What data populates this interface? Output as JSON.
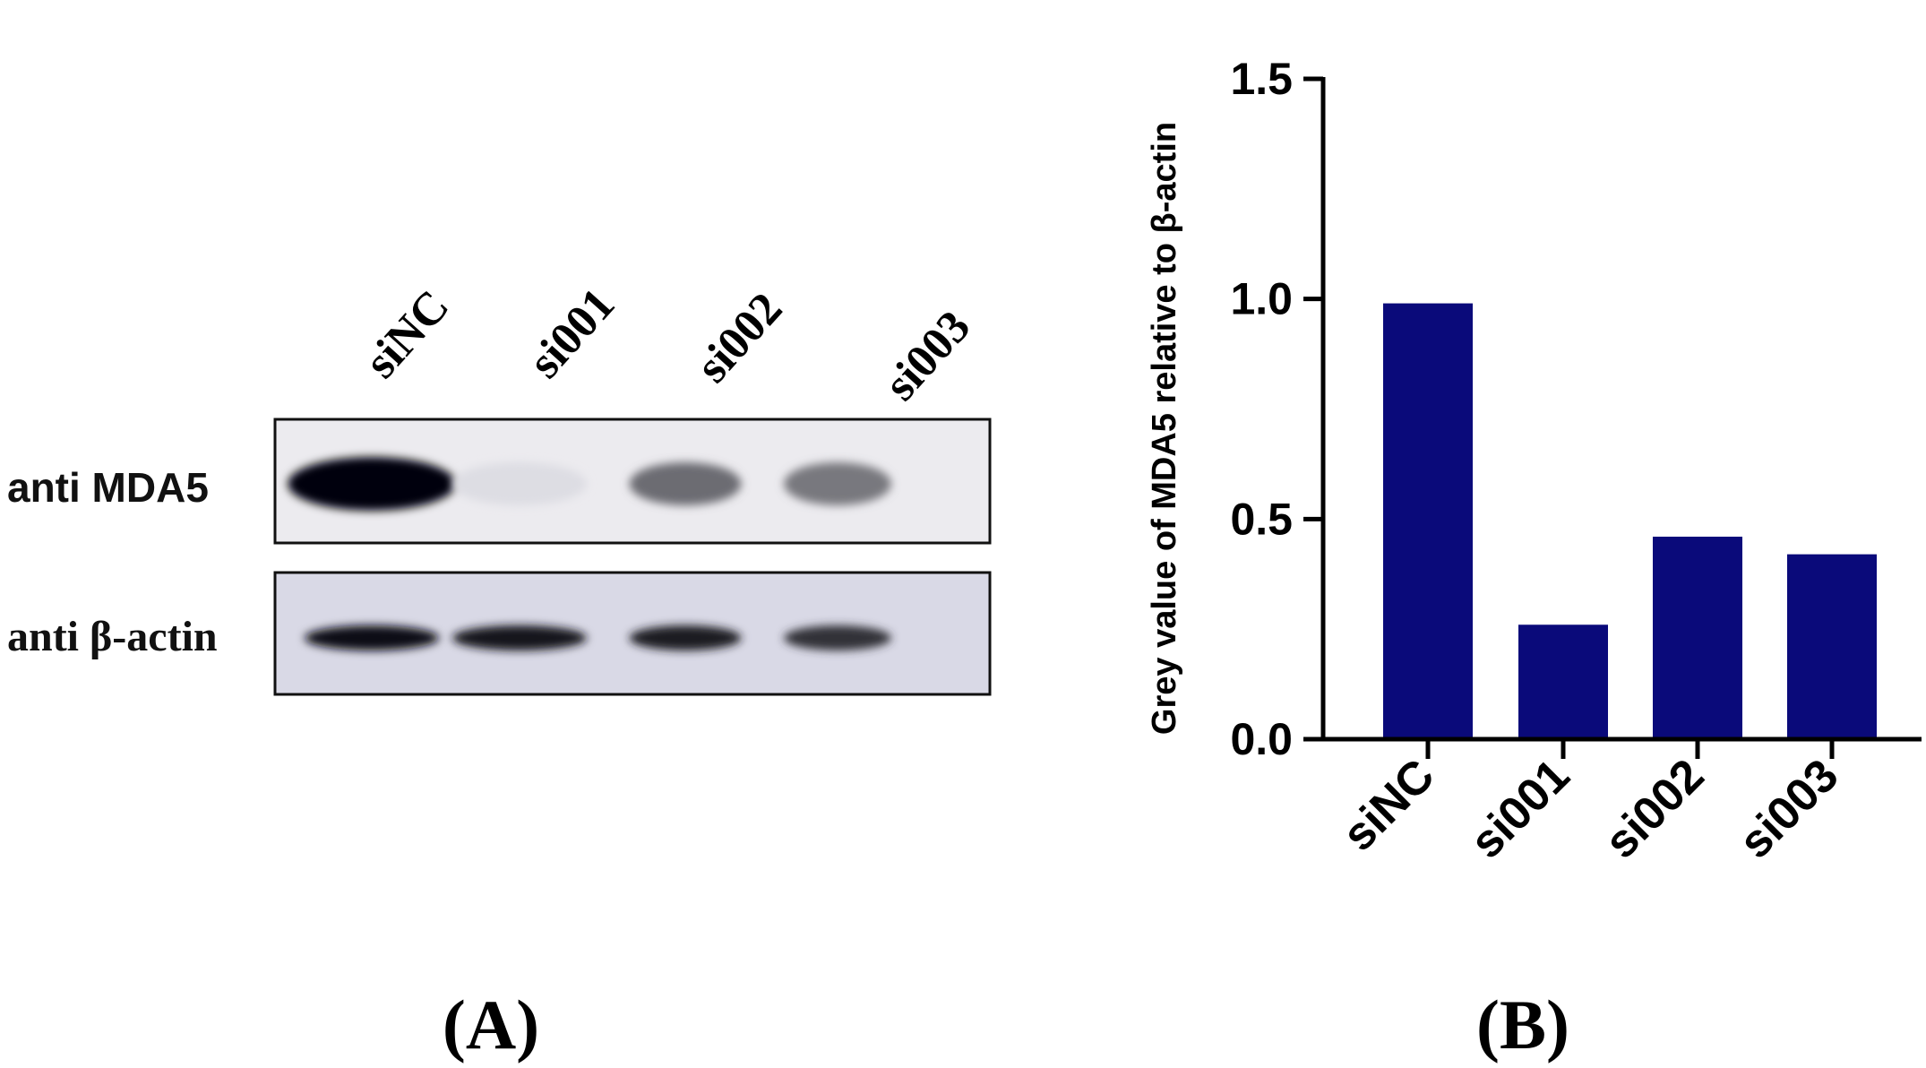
{
  "panel_a": {
    "letter": "(A)",
    "lanes": [
      "siNC",
      "si001",
      "si002",
      "si003"
    ],
    "rows": [
      {
        "label": "anti MDA5",
        "intensities": [
          1.0,
          0.06,
          0.55,
          0.5
        ]
      },
      {
        "label": "anti β-actin",
        "intensities": [
          0.95,
          0.92,
          0.9,
          0.8
        ]
      }
    ]
  },
  "panel_b": {
    "letter": "(B)"
  },
  "colors": {
    "bar": "#0a0a7a",
    "axis": "#000000"
  },
  "chart_data": {
    "type": "bar",
    "categories": [
      "siNC",
      "si001",
      "si002",
      "si003"
    ],
    "values": [
      0.99,
      0.26,
      0.46,
      0.42
    ],
    "title": "",
    "xlabel": "",
    "ylabel": "Grey value of MDA5 relative to β-actin",
    "ylim": [
      0,
      1.5
    ],
    "yticks": [
      "0.0",
      "0.5",
      "1.0",
      "1.5"
    ],
    "grid": false,
    "legend": "none"
  }
}
